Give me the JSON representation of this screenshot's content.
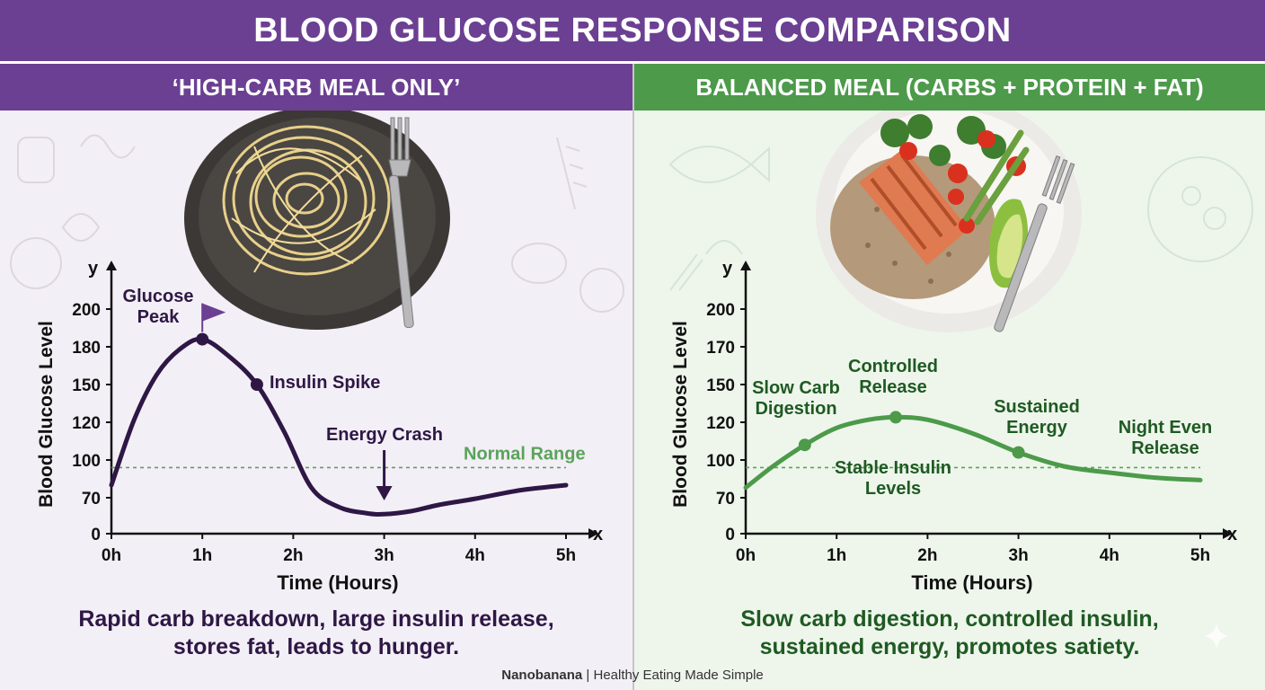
{
  "header": {
    "title": "BLOOD GLUCOSE RESPONSE COMPARISON"
  },
  "panels": {
    "left": {
      "title": "‘HIGH-CARB MEAL ONLY’",
      "caption_line1": "Rapid carb breakdown, large insulin release,",
      "caption_line2": "stores fat, leads to hunger."
    },
    "right": {
      "title": "BALANCED MEAL (CARBS + PROTEIN + FAT)",
      "caption_line1": "Slow carb digestion, controlled insulin,",
      "caption_line2": "sustained energy, promotes satiety."
    }
  },
  "footer": {
    "brand": "Nanobanana",
    "separator": " | ",
    "tagline": "Healthy Eating Made Simple"
  },
  "colors": {
    "purple": "#6b3f92",
    "dark_purple": "#2e1745",
    "green": "#4c9a4a",
    "dark_green": "#1f5a22",
    "normal_range": "#5aa35a"
  },
  "chart_data": [
    {
      "type": "line",
      "xlabel": "Time (Hours)",
      "ylabel": "Blood Glucose Level",
      "x_axis_letter": "x",
      "y_axis_letter": "y",
      "x_ticks": [
        "0h",
        "1h",
        "2h",
        "3h",
        "4h",
        "5h"
      ],
      "y_ticks": [
        0,
        70,
        100,
        120,
        150,
        180,
        200
      ],
      "xlim": [
        0,
        5
      ],
      "normal_range": {
        "value": 94,
        "label": "Normal Range"
      },
      "series": [
        {
          "color": "#2e1745",
          "points": [
            [
              0,
              80
            ],
            [
              0.25,
              122
            ],
            [
              0.5,
              158
            ],
            [
              0.75,
              178
            ],
            [
              1.0,
              184
            ],
            [
              1.3,
              172
            ],
            [
              1.6,
              150
            ],
            [
              1.9,
              115
            ],
            [
              2.2,
              78
            ],
            [
              2.5,
              52
            ],
            [
              2.8,
              40
            ],
            [
              3.0,
              38
            ],
            [
              3.3,
              44
            ],
            [
              3.6,
              56
            ],
            [
              4.0,
              68
            ],
            [
              4.5,
              76
            ],
            [
              5.0,
              80
            ]
          ]
        }
      ],
      "markers": [
        {
          "x": 1.0,
          "y": 184,
          "label": "Glucose\nPeak",
          "flag": true
        },
        {
          "x": 1.6,
          "y": 150,
          "label": "Insulin Spike"
        }
      ],
      "annotations": [
        {
          "x": 3.0,
          "label": "Energy Crash",
          "arrow": true
        }
      ]
    },
    {
      "type": "line",
      "xlabel": "Time (Hours)",
      "ylabel": "Blood Glucose Level",
      "x_axis_letter": "x",
      "y_axis_letter": "y",
      "x_ticks": [
        "0h",
        "1h",
        "2h",
        "3h",
        "4h",
        "5h"
      ],
      "y_ticks": [
        0,
        70,
        100,
        120,
        150,
        170,
        200
      ],
      "xlim": [
        0,
        5
      ],
      "normal_range": {
        "value": 94,
        "label": ""
      },
      "series": [
        {
          "color": "#4c9a4a",
          "points": [
            [
              0,
              78
            ],
            [
              0.3,
              95
            ],
            [
              0.65,
              108
            ],
            [
              1.0,
              117
            ],
            [
              1.35,
              122
            ],
            [
              1.65,
              124
            ],
            [
              2.0,
              122
            ],
            [
              2.5,
              114
            ],
            [
              3.0,
              104
            ],
            [
              3.5,
              95
            ],
            [
              4.0,
              90
            ],
            [
              4.5,
              86
            ],
            [
              5.0,
              84
            ]
          ]
        }
      ],
      "markers": [
        {
          "x": 0.65,
          "y": 108,
          "label": "Slow Carb\nDigestion"
        },
        {
          "x": 1.65,
          "y": 124,
          "label": "Controlled\nRelease"
        },
        {
          "x": 3.0,
          "y": 104,
          "label": "Sustained\nEnergy"
        }
      ],
      "annotations": [
        {
          "x": 4.7,
          "label": "Night Even\nRelease"
        },
        {
          "x": 1.65,
          "label": "Stable Insulin\nLevels"
        }
      ]
    }
  ]
}
